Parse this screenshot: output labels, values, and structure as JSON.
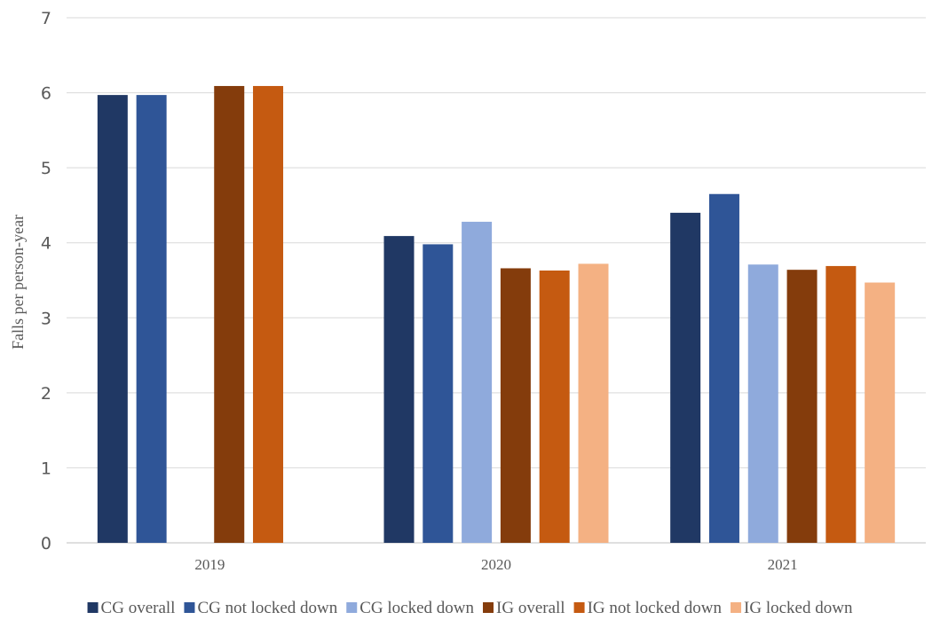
{
  "chart_data": {
    "type": "bar",
    "title": "",
    "xlabel": "",
    "ylabel": "Falls per person-year",
    "ylim": [
      0,
      7
    ],
    "yticks": [
      0,
      1,
      2,
      3,
      4,
      5,
      6,
      7
    ],
    "grid": true,
    "legend_position": "bottom",
    "categories": [
      "2019",
      "2020",
      "2021"
    ],
    "series": [
      {
        "name": "CG overall",
        "color": "#203864",
        "values": [
          5.97,
          4.09,
          4.4
        ]
      },
      {
        "name": "CG not locked down",
        "color": "#2F5597",
        "values": [
          5.97,
          3.98,
          4.65
        ]
      },
      {
        "name": "CG locked down",
        "color": "#8FAADC",
        "values": [
          null,
          4.28,
          3.71
        ]
      },
      {
        "name": "IG overall",
        "color": "#843C0C",
        "values": [
          6.09,
          3.66,
          3.64
        ]
      },
      {
        "name": "IG not locked down",
        "color": "#C55A11",
        "values": [
          6.09,
          3.63,
          3.69
        ]
      },
      {
        "name": "IG locked down",
        "color": "#F4B183",
        "values": [
          null,
          3.72,
          3.47
        ]
      }
    ]
  }
}
